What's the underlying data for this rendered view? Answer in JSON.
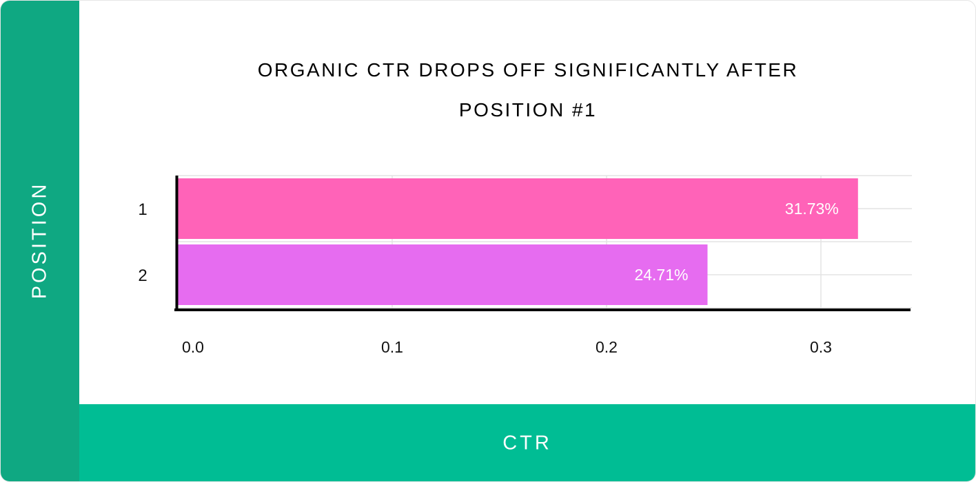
{
  "chart_data": {
    "type": "bar",
    "orientation": "horizontal",
    "title": "ORGANIC CTR DROPS OFF SIGNIFICANTLY AFTER POSITION #1",
    "xlabel": "CTR",
    "ylabel": "POSITION",
    "categories": [
      "1",
      "2"
    ],
    "values": [
      0.3173,
      0.2471
    ],
    "data_labels": [
      "31.73%",
      "24.71%"
    ],
    "bar_colors": [
      "#ff63b8",
      "#e66cf0"
    ],
    "xlim": [
      0.0,
      0.34
    ],
    "xticks": [
      "0.0",
      "0.1",
      "0.2",
      "0.3"
    ],
    "grid": true
  },
  "colors": {
    "ylabel_panel": "#0fa882",
    "xlabel_panel": "#00bd94"
  }
}
